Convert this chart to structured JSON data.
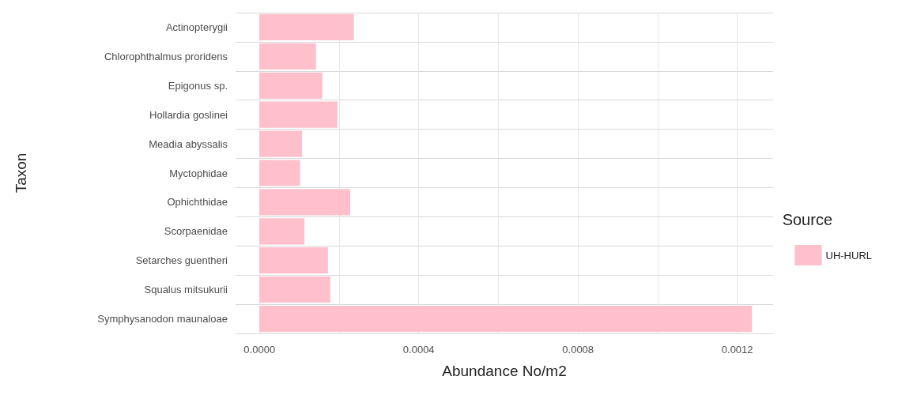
{
  "chart_data": {
    "type": "bar",
    "orientation": "horizontal",
    "xlabel": "Abundance No/m2",
    "ylabel": "Taxon",
    "legend_title": "Source",
    "legend": "right",
    "categories": [
      "Actinopterygii",
      "Chlorophthalmus proridens",
      "Epigonus sp.",
      "Hollardia goslinei",
      "Meadia abyssalis",
      "Myctophidae",
      "Ophichthidae",
      "Scorpaenidae",
      "Setarches guentheri",
      "Squalus mitsukurii",
      "Symphysanodon maunaloae"
    ],
    "series": [
      {
        "name": "UH-HURL",
        "color": "#ffc0cb",
        "values": [
          0.000237,
          0.000142,
          0.000158,
          0.000196,
          0.000107,
          0.000102,
          0.000228,
          0.000113,
          0.000172,
          0.000178,
          0.001237
        ]
      }
    ],
    "xlim": [
      -6e-05,
      0.00129
    ],
    "xticks": [
      {
        "value": 0,
        "label": "0.0000"
      },
      {
        "value": 0.0002,
        "label": null
      },
      {
        "value": 0.0004,
        "label": "0.0004"
      },
      {
        "value": 0.0006,
        "label": null
      },
      {
        "value": 0.0008,
        "label": "0.0008"
      },
      {
        "value": 0.001,
        "label": null
      },
      {
        "value": 0.0012,
        "label": "0.0012"
      }
    ],
    "grid": true
  }
}
